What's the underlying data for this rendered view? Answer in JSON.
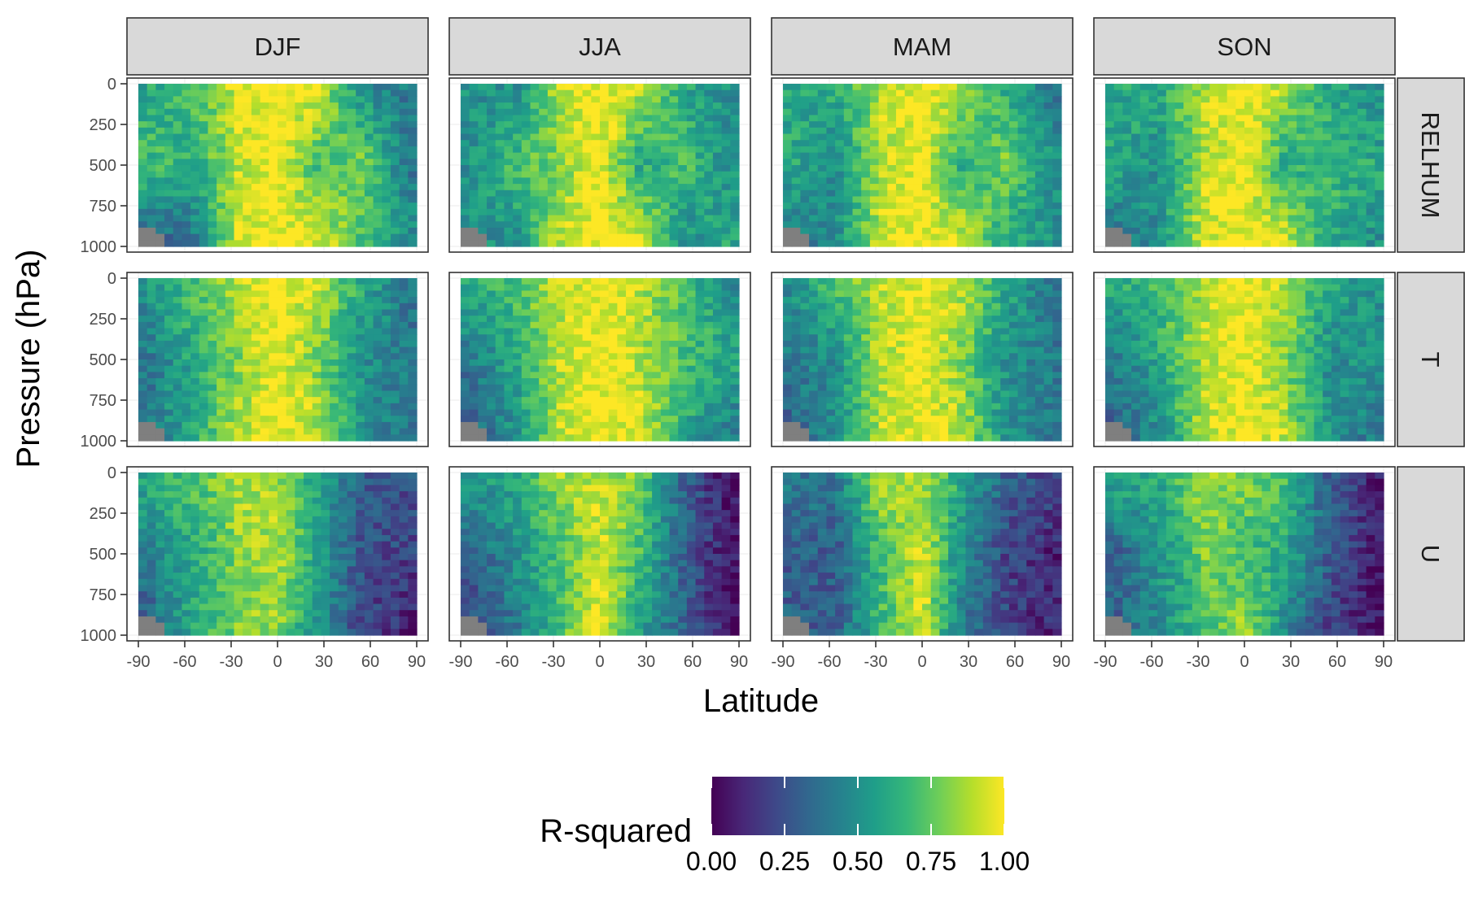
{
  "chart_data": {
    "type": "heatmap",
    "title": "",
    "xlabel": "Latitude",
    "ylabel": "Pressure (hPa)",
    "facet_columns": [
      "DJF",
      "JJA",
      "MAM",
      "SON"
    ],
    "facet_rows": [
      "RELHUM",
      "T",
      "U"
    ],
    "x_ticks": [
      -90,
      -60,
      -30,
      0,
      30,
      60,
      90
    ],
    "x_tick_labels": [
      "-90",
      "-60",
      "-30",
      "0",
      "30",
      "60",
      "90"
    ],
    "y_ticks": [
      0,
      250,
      500,
      750,
      1000
    ],
    "y_tick_labels": [
      "0",
      "250",
      "500",
      "750",
      "1000"
    ],
    "xlim": [
      -90,
      90
    ],
    "ylim": [
      1000,
      0
    ],
    "y_reversed": true,
    "grid": true,
    "missing_color": "#7f7f7f",
    "colorbar": {
      "title": "R-squared",
      "range": [
        0,
        1
      ],
      "ticks": [
        0,
        0.25,
        0.5,
        0.75,
        1
      ],
      "tick_labels": [
        "0.00",
        "0.25",
        "0.50",
        "0.75",
        "1.00"
      ],
      "palette": "viridis",
      "colors": [
        "#440154",
        "#482878",
        "#3e4989",
        "#31688e",
        "#26828e",
        "#1f9e89",
        "#35b779",
        "#6ece58",
        "#b5de2b",
        "#fde725"
      ],
      "position": "bottom"
    },
    "sample_lat": [
      -85,
      -55,
      -25,
      0,
      25,
      55,
      85
    ],
    "sample_plev": [
      50,
      500,
      950
    ],
    "approx_r2": {
      "RELHUM": {
        "DJF": [
          [
            0.6,
            0.7,
            0.95,
            1.0,
            0.95,
            0.5,
            0.4
          ],
          [
            0.7,
            0.6,
            0.9,
            1.0,
            0.7,
            0.8,
            0.4
          ],
          [
            0.3,
            0.4,
            0.95,
            1.0,
            0.95,
            0.7,
            0.5
          ]
        ],
        "JJA": [
          [
            0.5,
            0.5,
            0.9,
            1.0,
            0.9,
            0.6,
            0.5
          ],
          [
            0.5,
            0.7,
            0.8,
            1.0,
            0.6,
            0.7,
            0.5
          ],
          [
            0.5,
            0.5,
            0.9,
            1.0,
            0.95,
            0.5,
            0.6
          ]
        ],
        "MAM": [
          [
            0.6,
            0.6,
            0.9,
            1.0,
            0.9,
            0.6,
            0.4
          ],
          [
            0.6,
            0.5,
            0.9,
            1.0,
            0.6,
            0.8,
            0.5
          ],
          [
            0.4,
            0.5,
            0.95,
            1.0,
            0.95,
            0.6,
            0.5
          ]
        ],
        "SON": [
          [
            0.6,
            0.6,
            0.9,
            1.0,
            0.9,
            0.6,
            0.5
          ],
          [
            0.6,
            0.5,
            0.9,
            1.0,
            0.6,
            0.7,
            0.6
          ],
          [
            0.4,
            0.5,
            0.95,
            1.0,
            0.95,
            0.6,
            0.5
          ]
        ]
      },
      "T": {
        "DJF": [
          [
            0.5,
            0.7,
            0.9,
            1.0,
            0.9,
            0.6,
            0.4
          ],
          [
            0.4,
            0.6,
            0.8,
            1.0,
            0.8,
            0.5,
            0.4
          ],
          [
            0.4,
            0.6,
            0.9,
            1.0,
            0.9,
            0.5,
            0.4
          ]
        ],
        "JJA": [
          [
            0.6,
            0.7,
            0.9,
            1.0,
            0.9,
            0.7,
            0.5
          ],
          [
            0.4,
            0.6,
            0.9,
            1.0,
            0.9,
            0.7,
            0.6
          ],
          [
            0.3,
            0.5,
            0.9,
            1.0,
            0.95,
            0.6,
            0.4
          ]
        ],
        "MAM": [
          [
            0.5,
            0.7,
            0.9,
            1.0,
            0.9,
            0.6,
            0.4
          ],
          [
            0.4,
            0.5,
            0.9,
            1.0,
            0.8,
            0.5,
            0.4
          ],
          [
            0.3,
            0.5,
            0.9,
            1.0,
            0.9,
            0.5,
            0.4
          ]
        ],
        "SON": [
          [
            0.6,
            0.7,
            0.9,
            1.0,
            0.9,
            0.6,
            0.5
          ],
          [
            0.4,
            0.6,
            0.9,
            1.0,
            0.8,
            0.5,
            0.5
          ],
          [
            0.3,
            0.5,
            0.9,
            1.0,
            0.9,
            0.5,
            0.4
          ]
        ]
      },
      "U": {
        "DJF": [
          [
            0.6,
            0.7,
            0.9,
            0.85,
            0.6,
            0.3,
            0.25
          ],
          [
            0.4,
            0.6,
            0.8,
            0.9,
            0.6,
            0.25,
            0.2
          ],
          [
            0.3,
            0.6,
            0.8,
            0.85,
            0.5,
            0.2,
            0.1
          ]
        ],
        "JJA": [
          [
            0.5,
            0.6,
            0.85,
            0.9,
            0.8,
            0.3,
            0.05
          ],
          [
            0.3,
            0.5,
            0.7,
            0.95,
            0.7,
            0.3,
            0.05
          ],
          [
            0.2,
            0.4,
            0.7,
            1.0,
            0.6,
            0.3,
            0.05
          ]
        ],
        "MAM": [
          [
            0.4,
            0.4,
            0.9,
            0.85,
            0.6,
            0.3,
            0.2
          ],
          [
            0.3,
            0.3,
            0.7,
            0.95,
            0.5,
            0.2,
            0.1
          ],
          [
            0.3,
            0.3,
            0.7,
            0.95,
            0.4,
            0.2,
            0.1
          ]
        ],
        "SON": [
          [
            0.6,
            0.6,
            0.85,
            0.8,
            0.7,
            0.3,
            0.1
          ],
          [
            0.3,
            0.5,
            0.8,
            0.7,
            0.6,
            0.3,
            0.05
          ],
          [
            0.3,
            0.5,
            0.7,
            0.85,
            0.5,
            0.2,
            0.05
          ]
        ]
      }
    }
  }
}
